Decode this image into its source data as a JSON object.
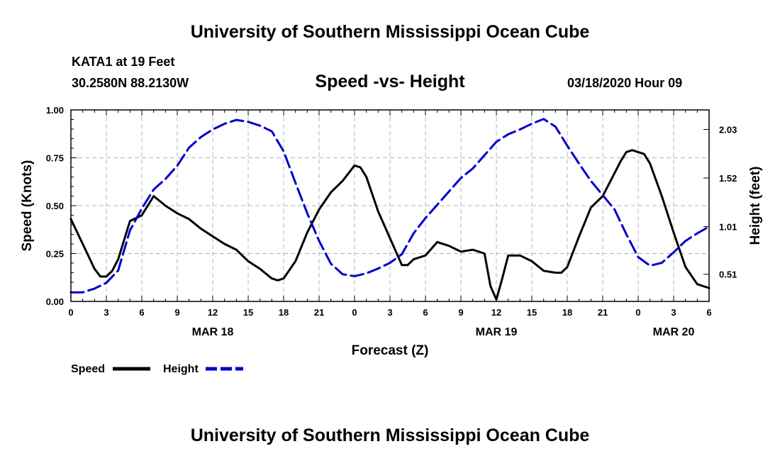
{
  "header": {
    "title": "University of Southern Mississippi Ocean Cube",
    "station": "KATA1 at 19 Feet",
    "coords": "30.2580N 88.2130W",
    "subtitle": "Speed -vs- Height",
    "stamp": "03/18/2020 Hour 09"
  },
  "footer": {
    "title": "University of Southern Mississippi Ocean Cube"
  },
  "colors": {
    "speed": "#000000",
    "height": "#0000cc",
    "grid": "#b4b4b4"
  },
  "chart_data": {
    "type": "line",
    "title": "Speed -vs- Height",
    "xlabel": "Forecast (Z)",
    "ylabel": "Speed (Knots)",
    "y2label": "Height (feet)",
    "xlim": [
      0,
      54
    ],
    "ylim": [
      0,
      1.0
    ],
    "y2lim": [
      0.225,
      2.235
    ],
    "x_ticks": [
      0,
      3,
      6,
      9,
      12,
      15,
      18,
      21,
      24,
      27,
      30,
      33,
      36,
      39,
      42,
      45,
      48,
      51,
      54
    ],
    "x_tick_labels": [
      "0",
      "3",
      "6",
      "9",
      "12",
      "15",
      "18",
      "21",
      "0",
      "3",
      "6",
      "9",
      "12",
      "15",
      "18",
      "21",
      "0",
      "3",
      "6"
    ],
    "date_labels": [
      {
        "x": 12,
        "label": "MAR 18"
      },
      {
        "x": 36,
        "label": "MAR 19"
      },
      {
        "x": 51,
        "label": "MAR 20"
      }
    ],
    "y_ticks": [
      0.0,
      0.25,
      0.5,
      0.75,
      1.0
    ],
    "y_tick_labels": [
      "0.00",
      "0.25",
      "0.50",
      "0.75",
      "1.00"
    ],
    "y2_ticks": [
      0.51,
      1.01,
      1.52,
      2.03
    ],
    "y2_tick_labels": [
      "0.51",
      "1.01",
      "1.52",
      "2.03"
    ],
    "grid": true,
    "series": [
      {
        "name": "Speed",
        "axis": "left",
        "style": "solid",
        "x": [
          0,
          1,
          2,
          2.5,
          3,
          3.5,
          4,
          5,
          6,
          7,
          8,
          9,
          10,
          11,
          12,
          13,
          14,
          15,
          16,
          17,
          17.5,
          18,
          19,
          20,
          21,
          22,
          23,
          24,
          24.5,
          25,
          26,
          27,
          28,
          28.5,
          29,
          30,
          31,
          32,
          33,
          34,
          35,
          35.5,
          36,
          36.5,
          37,
          38,
          39,
          40,
          41,
          41.5,
          42,
          43,
          44,
          45,
          46,
          46.5,
          47,
          47.5,
          48,
          48.5,
          49,
          50,
          51,
          52,
          53,
          53.5,
          54
        ],
        "y": [
          0.43,
          0.3,
          0.17,
          0.13,
          0.13,
          0.16,
          0.22,
          0.42,
          0.45,
          0.55,
          0.5,
          0.46,
          0.43,
          0.38,
          0.34,
          0.3,
          0.27,
          0.21,
          0.17,
          0.12,
          0.11,
          0.12,
          0.21,
          0.36,
          0.48,
          0.57,
          0.63,
          0.71,
          0.7,
          0.65,
          0.47,
          0.33,
          0.19,
          0.19,
          0.22,
          0.24,
          0.31,
          0.29,
          0.26,
          0.27,
          0.25,
          0.08,
          0.01,
          0.12,
          0.24,
          0.24,
          0.21,
          0.16,
          0.15,
          0.15,
          0.18,
          0.34,
          0.49,
          0.55,
          0.67,
          0.73,
          0.78,
          0.79,
          0.78,
          0.77,
          0.72,
          0.55,
          0.36,
          0.18,
          0.09,
          0.08,
          0.07
        ]
      },
      {
        "name": "Height",
        "axis": "right",
        "style": "dashed",
        "x": [
          0,
          1,
          2,
          3,
          4,
          5,
          6,
          7,
          8,
          9,
          10,
          11,
          12,
          13,
          14,
          15,
          16,
          17,
          18,
          19,
          20,
          21,
          22,
          23,
          24,
          25,
          26,
          27,
          28,
          29,
          30,
          31,
          32,
          33,
          34,
          35,
          36,
          37,
          38,
          39,
          40,
          41,
          42,
          43,
          44,
          45,
          46,
          47,
          48,
          49,
          50,
          51,
          52,
          53,
          54
        ],
        "y": [
          0.32,
          0.32,
          0.36,
          0.42,
          0.55,
          0.97,
          1.2,
          1.4,
          1.51,
          1.65,
          1.84,
          1.95,
          2.03,
          2.09,
          2.13,
          2.11,
          2.07,
          2.01,
          1.8,
          1.47,
          1.15,
          0.86,
          0.62,
          0.51,
          0.49,
          0.52,
          0.57,
          0.63,
          0.72,
          0.94,
          1.1,
          1.24,
          1.38,
          1.52,
          1.62,
          1.76,
          1.9,
          1.98,
          2.03,
          2.09,
          2.14,
          2.06,
          1.86,
          1.67,
          1.49,
          1.34,
          1.19,
          0.93,
          0.69,
          0.6,
          0.63,
          0.74,
          0.86,
          0.94,
          1.01
        ]
      }
    ],
    "legend": [
      {
        "label": "Speed",
        "style": "solid"
      },
      {
        "label": "Height",
        "style": "dashed"
      }
    ]
  }
}
